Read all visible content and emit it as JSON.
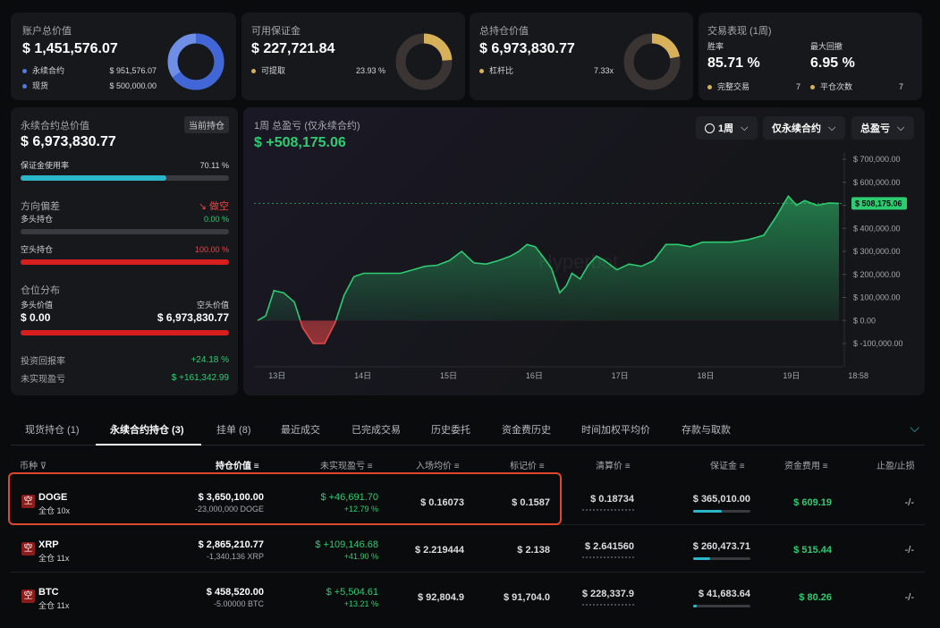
{
  "colors": {
    "green": "#2ecc71",
    "red": "#e54747",
    "cyan": "#2bb6c9",
    "gold": "#d6b15a",
    "blue": "#4f7de0"
  },
  "cards": {
    "account": {
      "label": "账户总价值",
      "value": "$ 1,451,576.07",
      "items": [
        {
          "name": "永续合约",
          "value": "$ 951,576.07"
        },
        {
          "name": "现货",
          "value": "$ 500,000.00"
        }
      ],
      "donut_fraction": 0.656
    },
    "margin": {
      "label": "可用保证金",
      "value": "$ 227,721.84",
      "items": [
        {
          "name": "可提取",
          "value": "23.93 %"
        }
      ],
      "donut_fraction": 0.2393
    },
    "holdings": {
      "label": "总持仓价值",
      "value": "$ 6,973,830.77",
      "items": [
        {
          "name": "杠杆比",
          "value": "7.33x"
        }
      ],
      "donut_fraction": 0.22
    },
    "performance": {
      "label": "交易表现 (1周)",
      "winrate_label": "胜率",
      "winrate": "85.71 %",
      "drawdown_label": "最大回撤",
      "drawdown": "6.95 %",
      "done_label": "完整交易",
      "done": "7",
      "close_label": "平仓次数",
      "close": "7"
    }
  },
  "perp": {
    "title": "永续合约总价值",
    "badge": "当前持仓",
    "value": "$ 6,973,830.77",
    "margin_usage_label": "保证金使用率",
    "margin_usage": "70.11 %",
    "margin_usage_fraction": 0.7011,
    "direction_label": "方向偏差",
    "direction_value": "做空",
    "long_label": "多头持仓",
    "long_pct": "0.00 %",
    "long_fraction": 0,
    "short_label": "空头持仓",
    "short_pct": "100.00 %",
    "short_fraction": 1,
    "dist_label": "仓位分布",
    "long_value_label": "多头价值",
    "short_value_label": "空头价值",
    "long_value": "$ 0.00",
    "short_value": "$ 6,973,830.77",
    "roi_label": "投资回报率",
    "roi": "+24.18 %",
    "upnl_label": "未实现盈亏",
    "upnl": "$ +161,342.99"
  },
  "pnl_chart": {
    "title": "1周 总盈亏 (仅永续合约)",
    "value": "$ +508,175.06",
    "controls": {
      "period": "1周",
      "scope": "仅永续合约",
      "metric": "总盈亏"
    },
    "watermark": "Hyperbot"
  },
  "chart_data": {
    "type": "area",
    "x_ticks": [
      "13日",
      "14日",
      "15日",
      "16日",
      "17日",
      "18日",
      "19日",
      "18:58"
    ],
    "y_ticks": [
      "$ 700,000.00",
      "$ 600,000.00",
      "$ 500,000.00",
      "$ 400,000.00",
      "$ 300,000.00",
      "$ 200,000.00",
      "$ 100,000.00",
      "$ 0.00",
      "$ -100,000.00"
    ],
    "ylim": [
      -100000,
      700000
    ],
    "current_label": "$ 508,175.06",
    "current": 508175,
    "x": [
      0,
      0.1,
      0.2,
      0.32,
      0.45,
      0.55,
      0.68,
      0.82,
      0.95,
      1.06,
      1.18,
      1.3,
      1.45,
      1.6,
      1.75,
      1.9,
      2.05,
      2.2,
      2.35,
      2.5,
      2.65,
      2.8,
      2.95,
      3.1,
      3.2,
      3.3,
      3.4,
      3.5,
      3.6,
      3.7,
      3.78,
      3.85,
      3.95,
      4.05,
      4.15,
      4.25,
      4.4,
      4.55,
      4.7,
      4.85,
      5.0,
      5.15,
      5.3,
      5.45,
      5.6,
      5.8,
      6.0,
      6.2,
      6.35,
      6.5,
      6.6,
      6.7,
      6.85,
      7.0,
      7.12
    ],
    "values": [
      0,
      20000,
      130000,
      120000,
      80000,
      -30000,
      -100000,
      -100000,
      -10000,
      110000,
      190000,
      205000,
      205000,
      205000,
      205000,
      220000,
      235000,
      240000,
      260000,
      300000,
      250000,
      245000,
      260000,
      280000,
      300000,
      330000,
      320000,
      275000,
      225000,
      120000,
      150000,
      205000,
      180000,
      240000,
      280000,
      260000,
      220000,
      245000,
      235000,
      260000,
      330000,
      330000,
      320000,
      340000,
      340000,
      340000,
      350000,
      370000,
      450000,
      540000,
      500000,
      520000,
      500000,
      510000,
      508000
    ]
  },
  "tabs": [
    "现货持仓 (1)",
    "永续合约持仓 (3)",
    "挂单 (8)",
    "最近成交",
    "已完成交易",
    "历史委托",
    "资金费历史",
    "时间加权平均价",
    "存款与取款"
  ],
  "table": {
    "headers": {
      "coin": "币种",
      "value": "持仓价值",
      "upnl": "未实现盈亏",
      "entry": "入场均价",
      "mark": "标记价",
      "liq": "清算价",
      "margin": "保证金",
      "funding": "资金费用",
      "tpsl": "止盈/止损"
    },
    "rows": [
      {
        "side": "空",
        "coin": "DOGE",
        "lev": "全仓 10x",
        "value": "$ 3,650,100.00",
        "size": "-23,000,000 DOGE",
        "upnl": "$ +46,691.70",
        "upnl_pct": "+12.79 %",
        "entry": "$ 0.16073",
        "mark": "$ 0.1587",
        "liq": "$ 0.18734",
        "margin": "$ 365,010.00",
        "margin_fraction": 0.5,
        "funding": "$ 609.19",
        "tpsl": "-/-"
      },
      {
        "side": "空",
        "coin": "XRP",
        "lev": "全仓 11x",
        "value": "$ 2,865,210.77",
        "size": "-1,340,136 XRP",
        "upnl": "$ +109,146.68",
        "upnl_pct": "+41.90 %",
        "entry": "$ 2.219444",
        "mark": "$ 2.138",
        "liq": "$ 2.641560",
        "margin": "$ 260,473.71",
        "margin_fraction": 0.3,
        "funding": "$ 515.44",
        "tpsl": "-/-"
      },
      {
        "side": "空",
        "coin": "BTC",
        "lev": "全仓 11x",
        "value": "$ 458,520.00",
        "size": "-5.00000 BTC",
        "upnl": "$ +5,504.61",
        "upnl_pct": "+13.21 %",
        "entry": "$ 92,804.9",
        "mark": "$ 91,704.0",
        "liq": "$ 228,337.9",
        "margin": "$ 41,683.64",
        "margin_fraction": 0.06,
        "funding": "$ 80.26",
        "tpsl": "-/-"
      }
    ]
  }
}
